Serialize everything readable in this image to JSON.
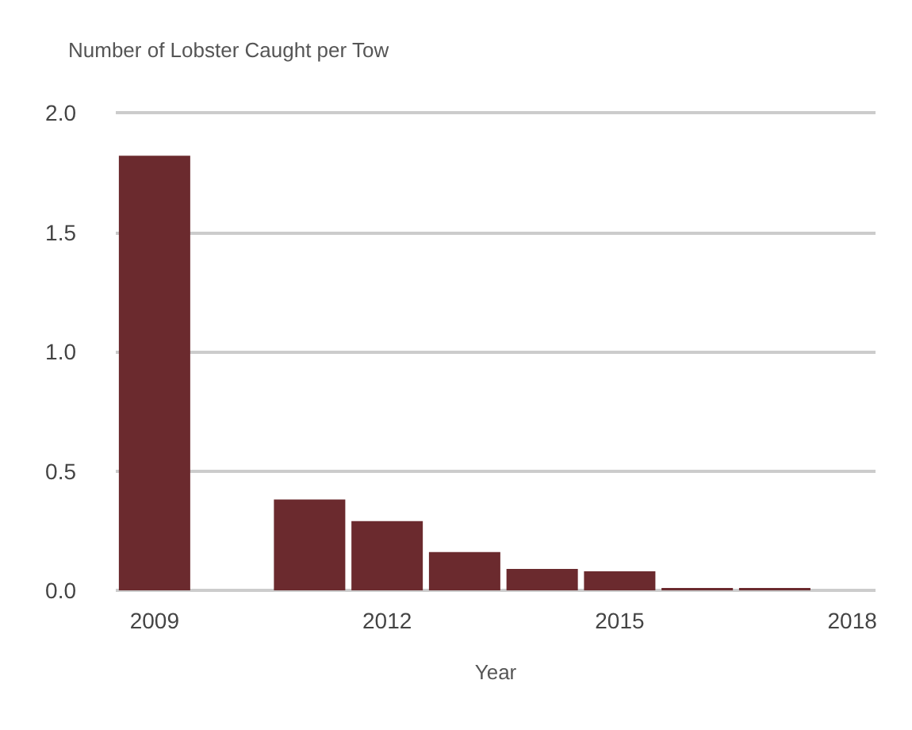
{
  "chart_data": {
    "type": "bar",
    "title": "Number of Lobster Caught per Tow",
    "xlabel": "Year",
    "x": [
      2009,
      2011,
      2012,
      2013,
      2014,
      2015,
      2016,
      2017
    ],
    "values": [
      1.82,
      0.38,
      0.29,
      0.16,
      0.09,
      0.08,
      0.01,
      0.01
    ],
    "color": "#6b2a2e",
    "xlim": [
      2008.5,
      2018.3
    ],
    "xticks": [
      2009,
      2012,
      2015,
      2018
    ],
    "ylim": [
      0,
      2
    ],
    "yticks": [
      {
        "value": 0,
        "label": "0.0"
      },
      0.5,
      {
        "value": 1,
        "label": "1.0"
      },
      1.5,
      {
        "value": 2,
        "label": "2.0"
      }
    ],
    "grid": "y"
  }
}
